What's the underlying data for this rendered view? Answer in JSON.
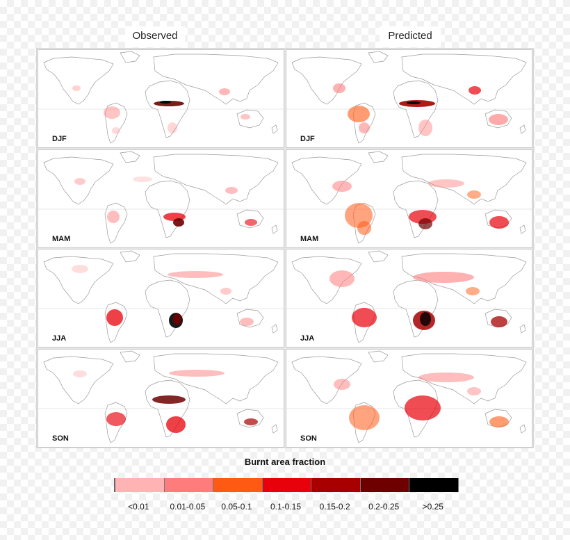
{
  "columns": [
    "Observed",
    "Predicted"
  ],
  "seasons": [
    "DJF",
    "MAM",
    "JJA",
    "SON"
  ],
  "legend": {
    "title": "Burnt area fraction",
    "classes": [
      {
        "label": "<0.01",
        "color": "#ffb3b3"
      },
      {
        "label": "0.01-0.05",
        "color": "#ff7c7c"
      },
      {
        "label": "0.05-0.1",
        "color": "#ff5a14"
      },
      {
        "label": "0.1-0.15",
        "color": "#e8000a"
      },
      {
        "label": "0.15-0.2",
        "color": "#a80000"
      },
      {
        "label": "0.2-0.25",
        "color": "#6e0000"
      },
      {
        "label": ">0.25",
        "color": "#000000"
      }
    ]
  }
}
